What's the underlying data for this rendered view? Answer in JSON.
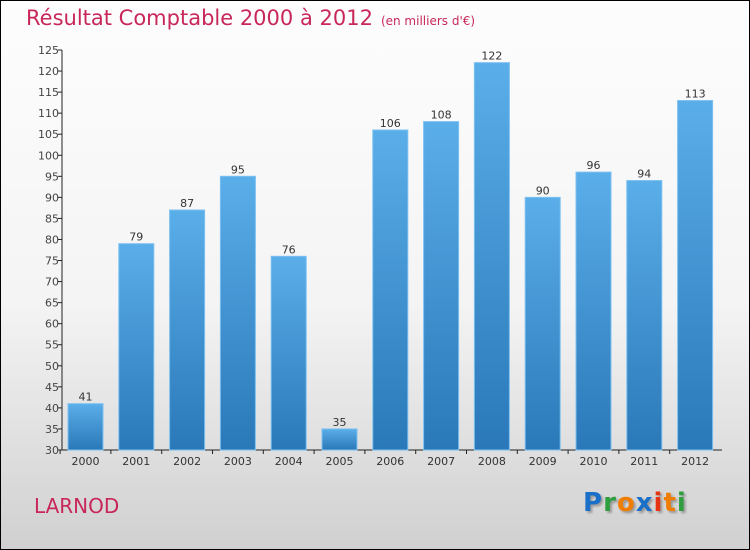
{
  "title": "Résultat Comptable 2000 à 2012",
  "subtitle": "(en milliers d'€)",
  "commune": "LARNOD",
  "logo": {
    "text": "Proxiti",
    "letters": [
      "P",
      "r",
      "o",
      "x",
      "i",
      "t",
      "i"
    ],
    "colors": [
      "#1a6fc9",
      "#2e9e3e",
      "#f07d00",
      "#1a6fc9",
      "#e63312",
      "#f07d00",
      "#2e9e3e"
    ]
  },
  "chart_data": {
    "type": "bar",
    "title": "Résultat Comptable 2000 à 2012",
    "ylabel": "(en milliers d'€)",
    "categories": [
      "2000",
      "2001",
      "2002",
      "2003",
      "2004",
      "2005",
      "2006",
      "2007",
      "2008",
      "2009",
      "2010",
      "2011",
      "2012"
    ],
    "values": [
      41,
      79,
      87,
      95,
      76,
      35,
      106,
      108,
      122,
      90,
      96,
      94,
      113
    ],
    "ylim": [
      30,
      125
    ],
    "yticks": [
      30,
      35,
      40,
      45,
      50,
      55,
      60,
      65,
      70,
      75,
      80,
      85,
      90,
      95,
      100,
      105,
      110,
      115,
      120,
      125
    ],
    "grid": false,
    "bar_color": "#3d8fd6"
  }
}
